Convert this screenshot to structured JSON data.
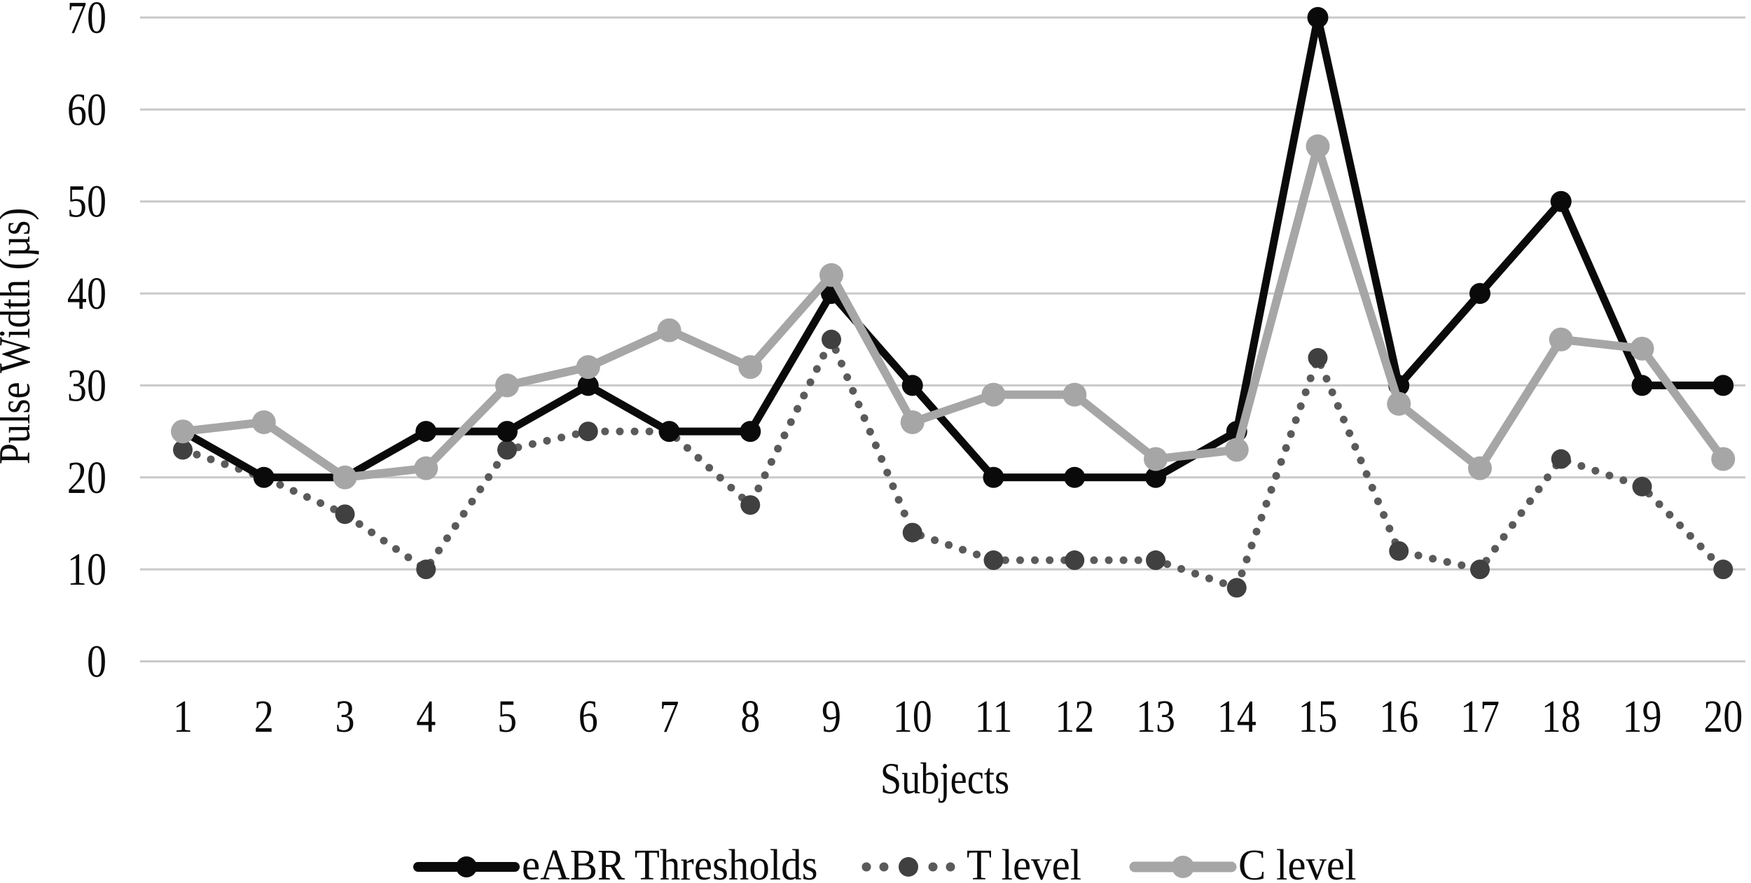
{
  "chart_data": {
    "type": "line",
    "title": "",
    "xlabel": "Subjects",
    "ylabel": "Pulse Width (µs)",
    "categories": [
      "1",
      "2",
      "3",
      "4",
      "5",
      "6",
      "7",
      "8",
      "9",
      "10",
      "11",
      "12",
      "13",
      "14",
      "15",
      "16",
      "17",
      "18",
      "19",
      "20"
    ],
    "yticks": [
      0,
      10,
      20,
      30,
      40,
      50,
      60,
      70
    ],
    "ylim": [
      0,
      70
    ],
    "grid": true,
    "legend_position": "bottom",
    "series": [
      {
        "name": "eABR Thresholds",
        "values": [
          25,
          20,
          20,
          25,
          25,
          30,
          25,
          25,
          40,
          30,
          20,
          20,
          20,
          25,
          70,
          30,
          40,
          50,
          30,
          30
        ],
        "color": "#0a0a0a",
        "marker_color": "#0a0a0a",
        "line_style": "solid",
        "marker": "circle",
        "z": 2
      },
      {
        "name": "T level",
        "values": [
          23,
          20,
          16,
          10,
          23,
          25,
          25,
          17,
          35,
          14,
          11,
          11,
          11,
          8,
          33,
          12,
          10,
          22,
          19,
          10
        ],
        "color": "#5a5a5a",
        "marker_color": "#404040",
        "line_style": "dotted",
        "marker": "circle",
        "z": 1
      },
      {
        "name": "C level",
        "values": [
          25,
          26,
          20,
          21,
          30,
          32,
          36,
          32,
          42,
          26,
          29,
          29,
          22,
          23,
          56,
          28,
          21,
          35,
          34,
          22
        ],
        "color": "#a6a6a6",
        "marker_color": "#a6a6a6",
        "line_style": "solid",
        "marker": "circle",
        "z": 3
      }
    ],
    "colors": {
      "gridline": "#c9c9c9",
      "text": "#0a0a0a",
      "background": "#ffffff"
    }
  }
}
